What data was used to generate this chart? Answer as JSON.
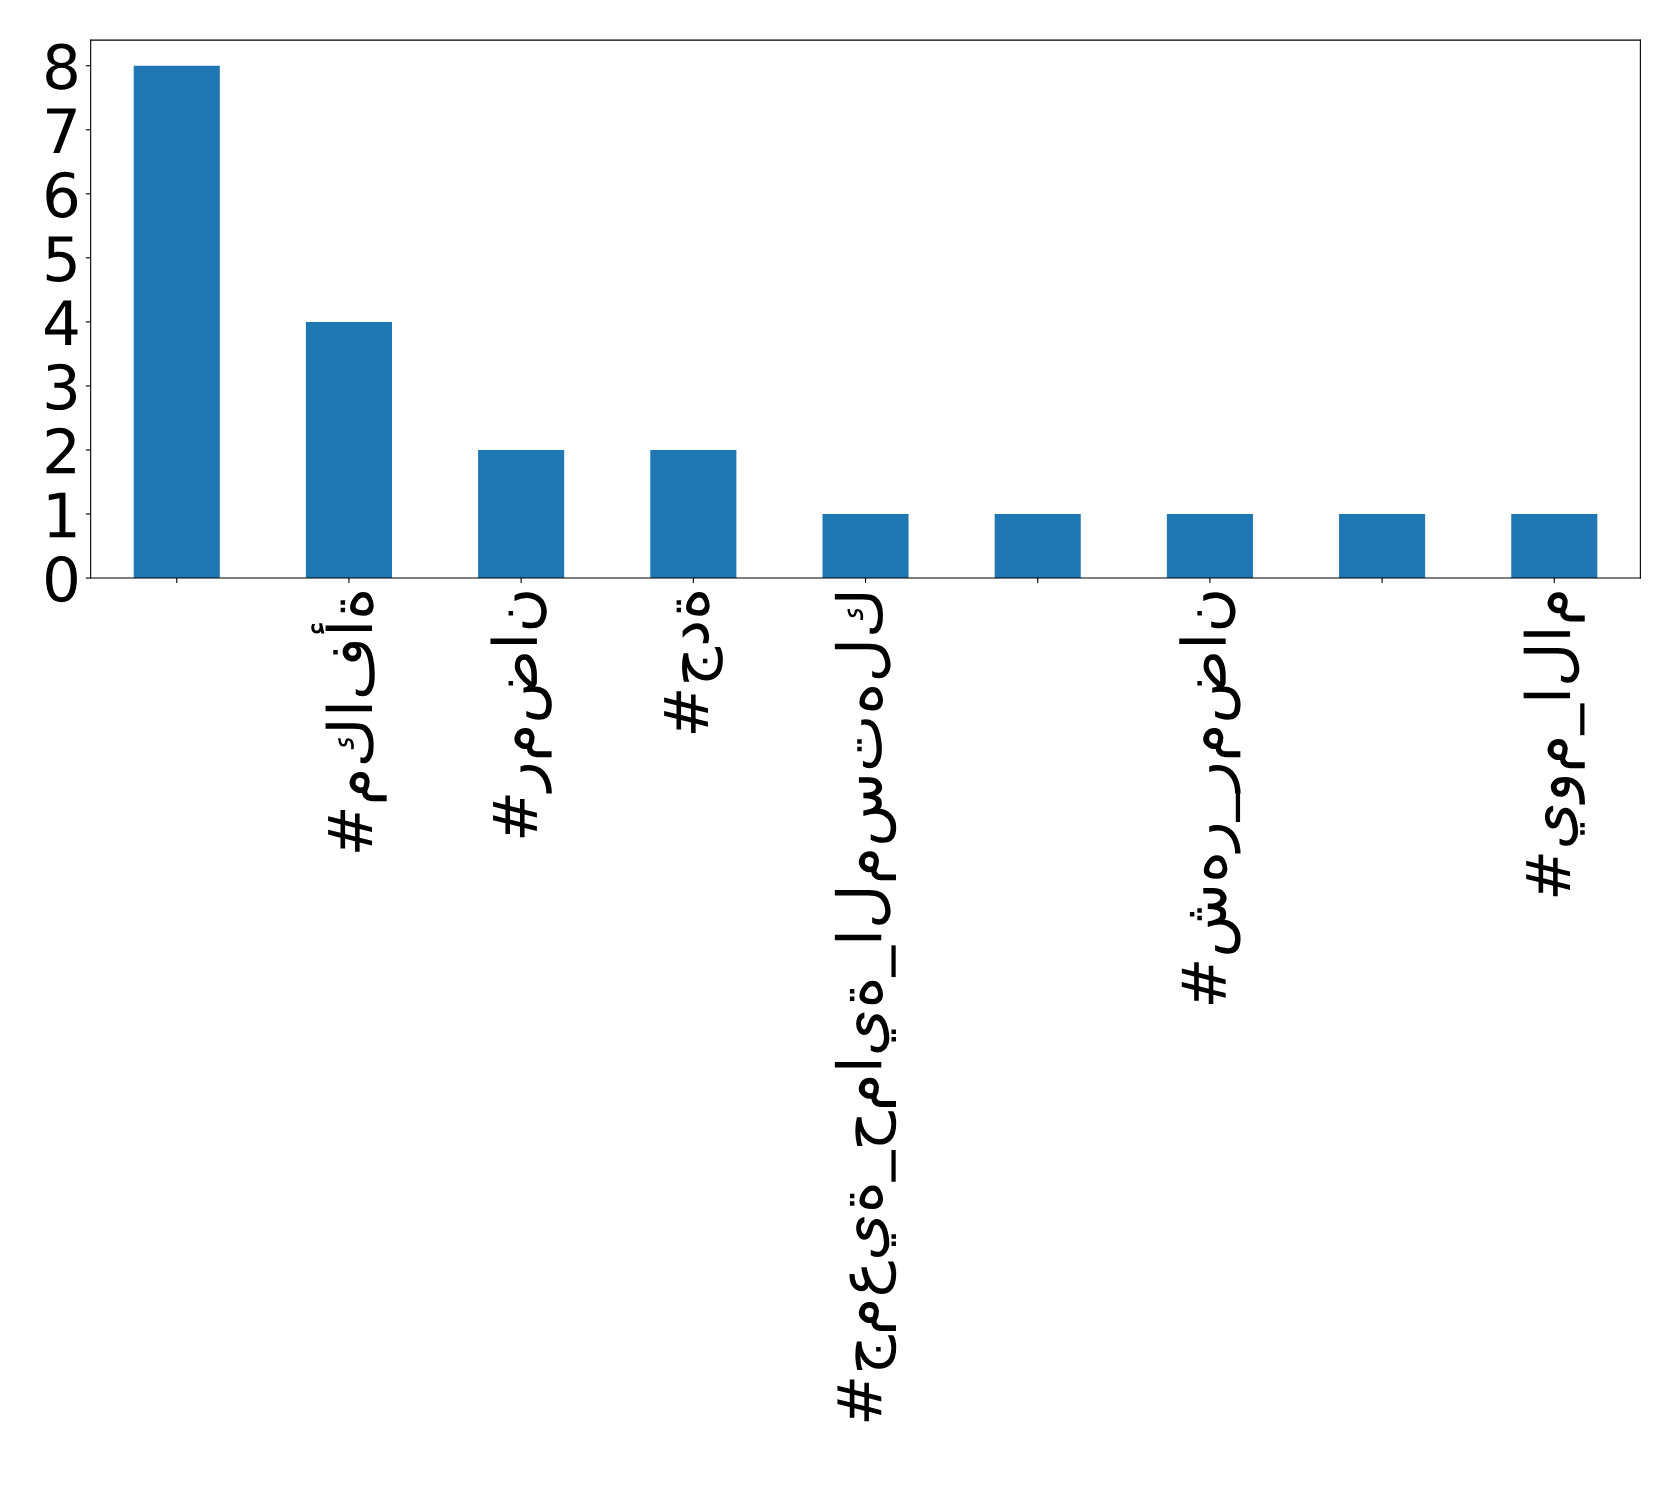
{
  "chart_data": {
    "type": "bar",
    "categories": [
      null,
      "#مكافأة",
      "#رمضان",
      "#جدة",
      "#جمعية_حماية_المستهلك",
      null,
      "#شهر_رمضان",
      null,
      "#يوم_الام"
    ],
    "values": [
      8,
      4,
      2,
      2,
      1,
      1,
      1,
      1,
      1
    ],
    "color": "#1f77b4",
    "ylim": [
      0,
      8.4
    ],
    "yticks": [
      0,
      1,
      2,
      3,
      4,
      5,
      6,
      7,
      8
    ],
    "grid": false,
    "legend": false
  }
}
